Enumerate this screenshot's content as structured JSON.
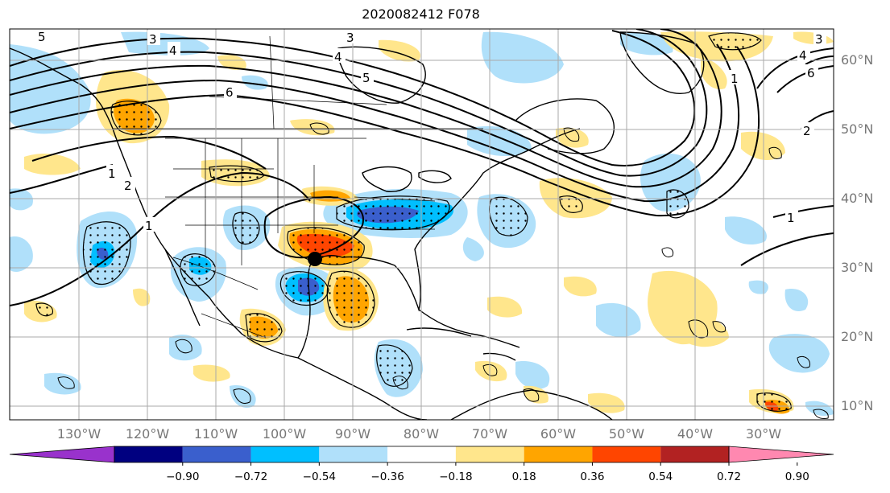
{
  "title": "2020082412 F078",
  "map": {
    "projection": "equirectangular",
    "lon_range": [
      -140,
      -20
    ],
    "lat_range": [
      8,
      64
    ],
    "lon_labels": [
      "130°W",
      "120°W",
      "110°W",
      "100°W",
      "90°W",
      "80°W",
      "70°W",
      "60°W",
      "50°W",
      "40°W",
      "30°W"
    ],
    "lat_labels": [
      "10°N",
      "20°N",
      "30°N",
      "40°N",
      "50°N",
      "60°N"
    ],
    "grid": true,
    "marker": {
      "lon": -95.5,
      "lat": 31.5,
      "shape": "filled-circle",
      "color": "#000000"
    },
    "contour_labels": [
      "1",
      "2",
      "3",
      "4",
      "5",
      "6"
    ]
  },
  "colorbar": {
    "orientation": "horizontal",
    "extend": "both",
    "colors": [
      "#9932cc",
      "#000080",
      "#3a5fcd",
      "#00bfff",
      "#b0e0fa",
      "#ffffff",
      "#ffe68c",
      "#ffa500",
      "#ff4500",
      "#b22222",
      "#ff88b0"
    ],
    "ticks": [
      "−0.90",
      "−0.72",
      "−0.54",
      "−0.36",
      "−0.18",
      "0.18",
      "0.36",
      "0.54",
      "0.72",
      "0.90"
    ]
  },
  "legend": {
    "positive_colors": [
      "#ffe68c",
      "#ffa500",
      "#ff4500",
      "#b22222"
    ],
    "negative_colors": [
      "#b0e0fa",
      "#00bfff",
      "#3a5fcd",
      "#000080"
    ],
    "land_outline": "#000000"
  }
}
